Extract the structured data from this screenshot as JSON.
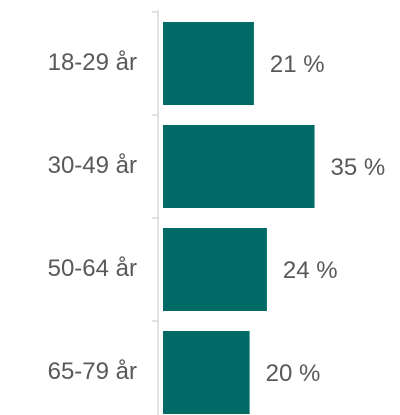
{
  "chart_data": {
    "type": "bar",
    "orientation": "horizontal",
    "categories": [
      "18-29 år",
      "30-49 år",
      "50-64 år",
      "65-79 år"
    ],
    "values": [
      21,
      35,
      24,
      20
    ],
    "value_labels": [
      "21 %",
      "35 %",
      "24 %",
      "20 %"
    ],
    "color": "#006b66"
  }
}
